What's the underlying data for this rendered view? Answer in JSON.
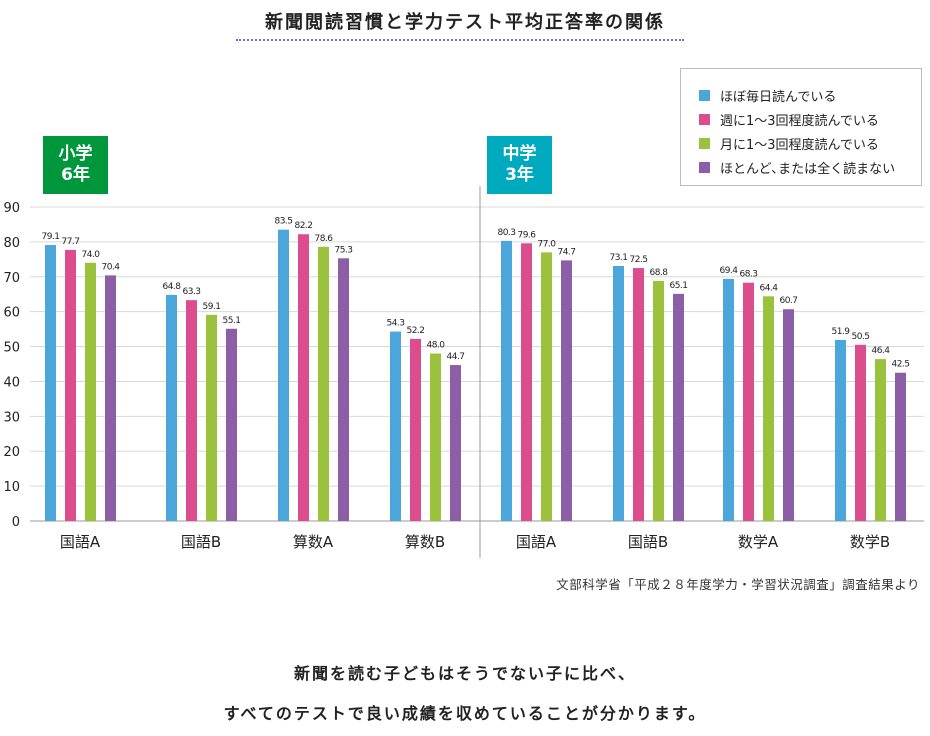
{
  "title": "新聞閲読習慣と学力テスト平均正答率の関係",
  "legend": {
    "items": [
      {
        "label": "ほぼ毎日読んでいる",
        "color": "#4ba6dc"
      },
      {
        "label": "週に1～3回程度読んでいる",
        "color": "#dc4d8d"
      },
      {
        "label": "月に1～3回程度読んでいる",
        "color": "#9bc23c"
      },
      {
        "label": "ほとんど､または全く読まない",
        "color": "#8c5ea6"
      }
    ]
  },
  "groups": {
    "elementary": {
      "line1": "小学",
      "line2": "6年",
      "color": "#00963c"
    },
    "middle": {
      "line1": "中学",
      "line2": "3年",
      "color": "#00aabe"
    }
  },
  "source": "文部科学省「平成２８年度学力・学習状況調査」調査結果より",
  "message": {
    "line1": "新聞を読む子どもはそうでない子に比べ、",
    "line2": "すべてのテストで良い成績を収めていることが分かります。"
  },
  "chart_data": {
    "type": "bar",
    "title": "新聞閲読習慣と学力テスト平均正答率の関係",
    "ylim": [
      0,
      90
    ],
    "yticks": [
      0,
      10,
      20,
      30,
      40,
      50,
      60,
      70,
      80,
      90
    ],
    "grid": true,
    "legend_position": "top-right",
    "categories": [
      "国語A",
      "国語B",
      "算数A",
      "算数B",
      "国語A",
      "国語B",
      "数学A",
      "数学B"
    ],
    "category_groups": [
      "小学6年",
      "小学6年",
      "小学6年",
      "小学6年",
      "中学3年",
      "中学3年",
      "中学3年",
      "中学3年"
    ],
    "series": [
      {
        "name": "ほぼ毎日読んでいる",
        "color": "#4ba6dc",
        "values": [
          79.1,
          64.8,
          83.5,
          54.3,
          80.3,
          73.1,
          69.4,
          51.9
        ],
        "labels": [
          "79.1",
          "64.8",
          "83.5",
          "54.3",
          "80.3",
          "73.1",
          "69.4",
          "51.9"
        ]
      },
      {
        "name": "週に1～3回程度読んでいる",
        "color": "#dc4d8d",
        "values": [
          77.7,
          63.3,
          82.2,
          52.2,
          79.6,
          72.5,
          68.3,
          50.5
        ],
        "labels": [
          "77.7",
          "63.3",
          "82.2",
          "52.2",
          "79.6",
          "72.5",
          "68.3",
          "50.5"
        ]
      },
      {
        "name": "月に1～3回程度読んでいる",
        "color": "#9bc23c",
        "values": [
          74.0,
          59.1,
          78.6,
          48.0,
          77.0,
          68.8,
          64.4,
          46.4
        ],
        "labels": [
          "74.0",
          "59.1",
          "78.6",
          "48.0",
          "77.0",
          "68.8",
          "64.4",
          "46.4"
        ]
      },
      {
        "name": "ほとんど､または全く読まない",
        "color": "#8c5ea6",
        "values": [
          70.4,
          55.1,
          75.3,
          44.7,
          74.7,
          65.1,
          60.7,
          42.5
        ],
        "labels": [
          "70.4",
          "55.1",
          "75.3",
          "44.7",
          "74.7",
          "65.1",
          "60.7",
          "42.5"
        ]
      }
    ]
  }
}
